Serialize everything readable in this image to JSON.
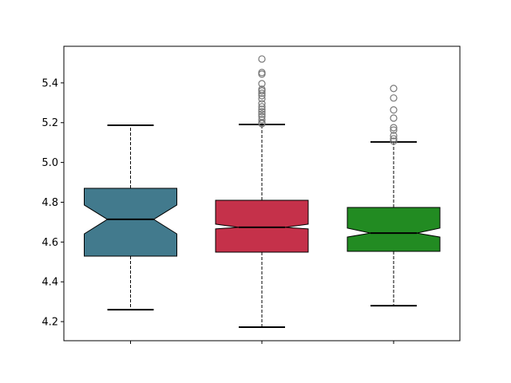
{
  "chart_data": {
    "type": "boxplot",
    "notched": true,
    "title": "",
    "xlabel": "",
    "ylabel": "",
    "ylim": [
      4.104,
      5.584
    ],
    "yticks": [
      4.2,
      4.4,
      4.6,
      4.8,
      5.0,
      5.2,
      5.4
    ],
    "ytick_labels": [
      "4.2",
      "4.4",
      "4.6",
      "4.8",
      "5.0",
      "5.2",
      "5.4"
    ],
    "xtick_labels": [
      "",
      "",
      ""
    ],
    "grid": false,
    "boxes": [
      {
        "color": "#427a8d",
        "whisker_low": 4.26,
        "q1": 4.529,
        "median": 4.714,
        "q3": 4.87,
        "whisker_high": 5.187,
        "notch_low": 4.641,
        "notch_high": 4.786,
        "outliers": []
      },
      {
        "color": "#c5314a",
        "whisker_low": 4.172,
        "q1": 4.549,
        "median": 4.674,
        "q3": 4.81,
        "whisker_high": 5.191,
        "notch_low": 4.666,
        "notch_high": 4.69,
        "outliers": [
          5.52,
          5.452,
          5.444,
          5.396,
          5.368,
          5.36,
          5.348,
          5.336,
          5.32,
          5.296,
          5.28,
          5.267,
          5.255,
          5.243,
          5.231,
          5.215,
          5.2,
          5.195
        ]
      },
      {
        "color": "#228b22",
        "whisker_low": 4.28,
        "q1": 4.553,
        "median": 4.645,
        "q3": 4.774,
        "whisker_high": 5.103,
        "notch_low": 4.625,
        "notch_high": 4.67,
        "outliers": [
          5.372,
          5.324,
          5.264,
          5.223,
          5.175,
          5.163,
          5.135,
          5.119,
          5.107
        ]
      }
    ]
  }
}
